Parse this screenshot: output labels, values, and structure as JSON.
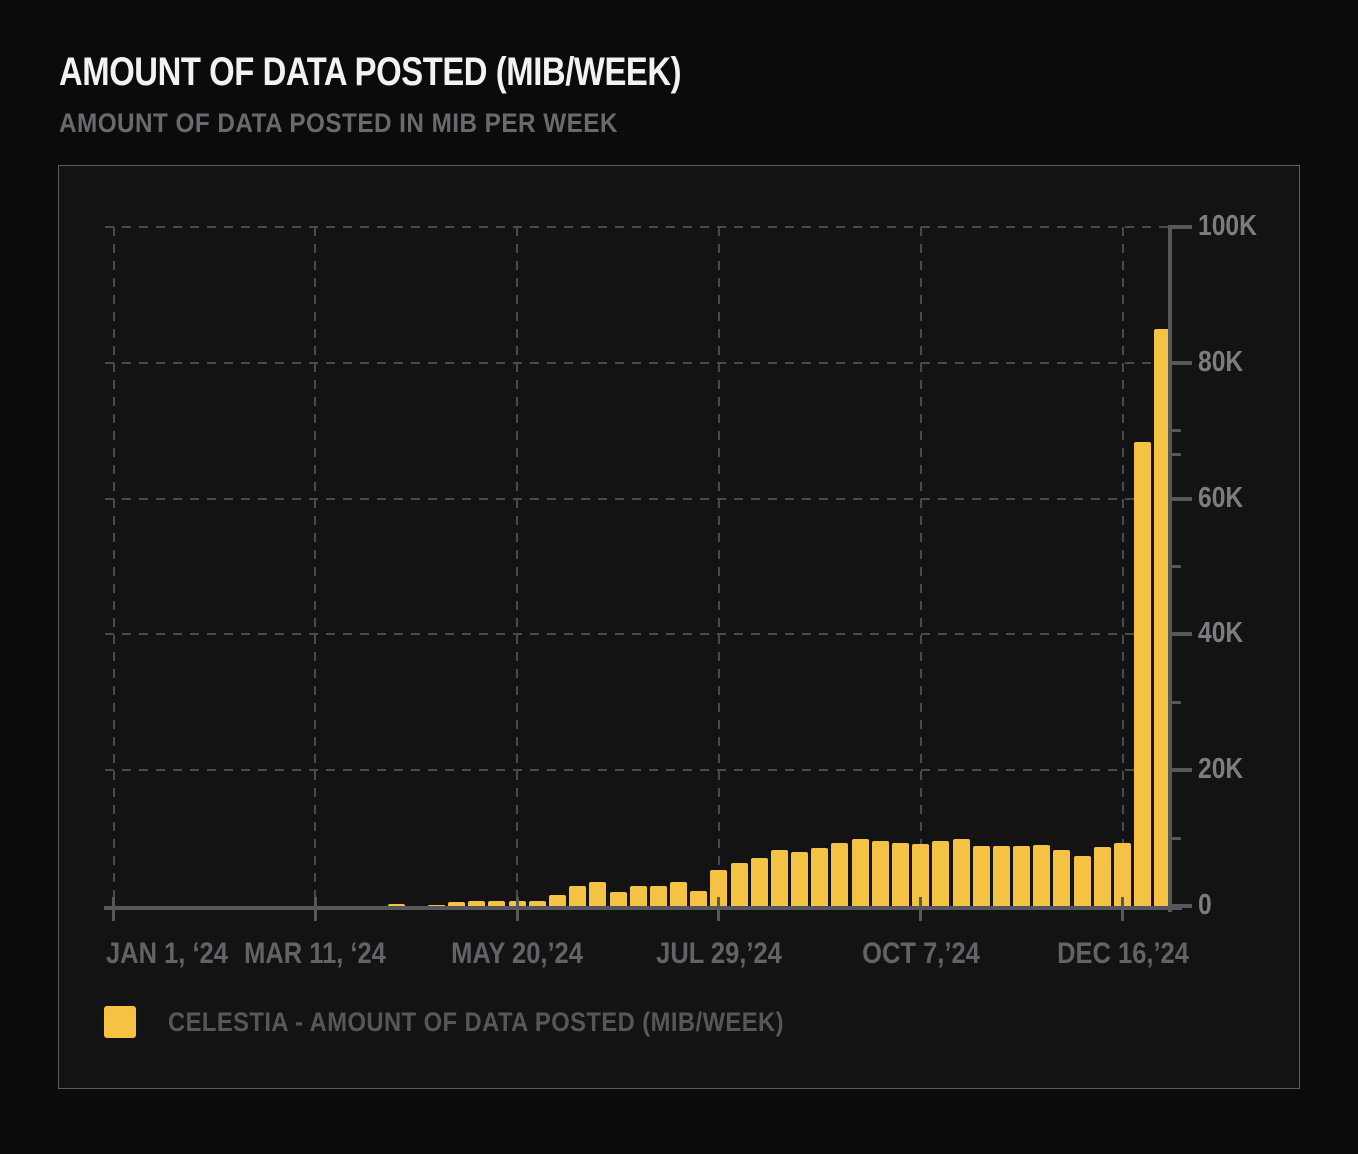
{
  "header": {
    "title": "AMOUNT OF DATA POSTED (MIB/WEEK)",
    "subtitle": "AMOUNT OF DATA POSTED IN MIB PER WEEK"
  },
  "legend": {
    "label": "CELESTIA - AMOUNT OF DATA POSTED (MIB/WEEK)",
    "swatch_color": "#F5C343"
  },
  "colors": {
    "page_background": "#0b0b0b",
    "panel_background": "#131313",
    "panel_border": "#5d5d5d",
    "bar_fill": "#F5C343",
    "axis_line": "#56575b",
    "gridline": "#4a4a4c",
    "y_label_text": "#7c7d80",
    "x_label_text": "#626366",
    "title_text": "#f2f2f2",
    "subtitle_text": "#696a6d",
    "legend_text": "#55575b"
  },
  "chart_data": {
    "type": "bar",
    "title": "AMOUNT OF DATA POSTED (MIB/WEEK)",
    "subtitle": "AMOUNT OF DATA POSTED IN MIB PER WEEK",
    "ylabel": "MiB per week",
    "xlabel": "",
    "ylim": [
      0,
      100000
    ],
    "grid": "dashed",
    "legend_position": "bottom-left",
    "y_ticks": {
      "values": [
        0,
        20000,
        40000,
        60000,
        80000,
        100000
      ],
      "labels": [
        "0",
        "20K",
        "40K",
        "60K",
        "80K",
        "100K"
      ],
      "minor_values": [
        10000,
        30000,
        50000,
        66500,
        70000
      ]
    },
    "x_ticks": {
      "labels": [
        "JAN 1, ‘24",
        "MAR 11, ‘24",
        "MAY 20,’24",
        "JUL 29,’24",
        "OCT 7,’24",
        "DEC 16,’24"
      ],
      "weeks_after_jan1": [
        0,
        10,
        20,
        30,
        40,
        50
      ]
    },
    "series": [
      {
        "name": "Celestia - Amount of data posted (MiB/week)",
        "color": "#F5C343",
        "first_bar_weeks_after_jan1": 14,
        "week_of": [
          "2024-04-08",
          "2024-04-15",
          "2024-04-22",
          "2024-04-29",
          "2024-05-06",
          "2024-05-13",
          "2024-05-20",
          "2024-05-27",
          "2024-06-03",
          "2024-06-10",
          "2024-06-17",
          "2024-06-24",
          "2024-07-01",
          "2024-07-08",
          "2024-07-15",
          "2024-07-22",
          "2024-07-29",
          "2024-08-05",
          "2024-08-12",
          "2024-08-19",
          "2024-08-26",
          "2024-09-02",
          "2024-09-09",
          "2024-09-16",
          "2024-09-23",
          "2024-09-30",
          "2024-10-07",
          "2024-10-14",
          "2024-10-21",
          "2024-10-28",
          "2024-11-04",
          "2024-11-11",
          "2024-11-18",
          "2024-11-25",
          "2024-12-02",
          "2024-12-09",
          "2024-12-16",
          "2024-12-23",
          "2024-12-30"
        ],
        "values": [
          300,
          0,
          200,
          600,
          800,
          800,
          700,
          800,
          1600,
          3000,
          3500,
          2000,
          2900,
          2900,
          3500,
          2200,
          5300,
          6300,
          7000,
          8300,
          7900,
          8600,
          9300,
          9800,
          9500,
          9300,
          9200,
          9600,
          9800,
          8900,
          8800,
          8900,
          9000,
          8200,
          7400,
          8700,
          9300,
          68400,
          85000
        ]
      }
    ]
  }
}
